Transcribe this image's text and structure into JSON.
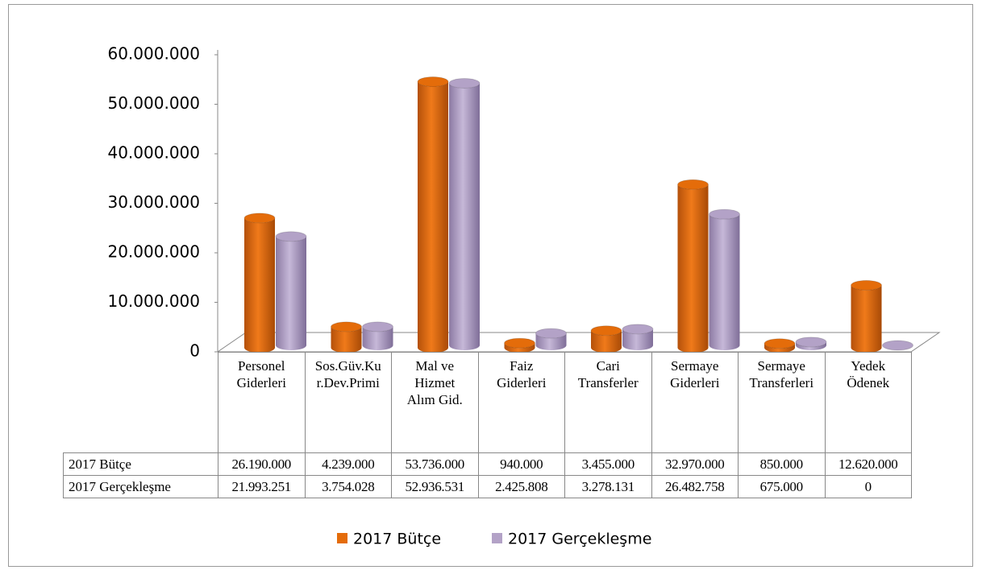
{
  "chart_data": {
    "type": "bar3d",
    "categories": [
      "Personel Giderleri",
      "Sos.Güv.Kur.Dev.Primi",
      "Mal ve Hizmet Alım Gid.",
      "Faiz Giderleri",
      "Cari Transferler",
      "Sermaye Giderleri",
      "Sermaye Transferleri",
      "Yedek Ödenek"
    ],
    "series": [
      {
        "name": "2017 Bütçe",
        "color": "#e46c0a",
        "values": [
          26190000,
          4239000,
          53736000,
          940000,
          3455000,
          32970000,
          850000,
          12620000
        ],
        "value_labels": [
          "26.190.000",
          "4.239.000",
          "53.736.000",
          "940.000",
          "3.455.000",
          "32.970.000",
          "850.000",
          "12.620.000"
        ]
      },
      {
        "name": "2017 Gerçekleşme",
        "color": "#b3a2c7",
        "values": [
          21993251,
          3754028,
          52936531,
          2425808,
          3278131,
          26482758,
          675000,
          0
        ],
        "value_labels": [
          "21.993.251",
          "3.754.028",
          "52.936.531",
          "2.425.808",
          "3.278.131",
          "26.482.758",
          "675.000",
          "0"
        ]
      }
    ],
    "ylim": [
      0,
      60000000
    ],
    "yticks": [
      0,
      {
        "value": 10000000,
        "label": "10.000.000"
      },
      {
        "value": 20000000,
        "label": "20.000.000"
      },
      {
        "value": 30000000,
        "label": "30.000.000"
      },
      {
        "value": 40000000,
        "label": "40.000.000"
      },
      {
        "value": 50000000,
        "label": "50.000.000"
      },
      {
        "value": 60000000,
        "label": "60.000.000"
      }
    ],
    "legend": "bottom"
  }
}
